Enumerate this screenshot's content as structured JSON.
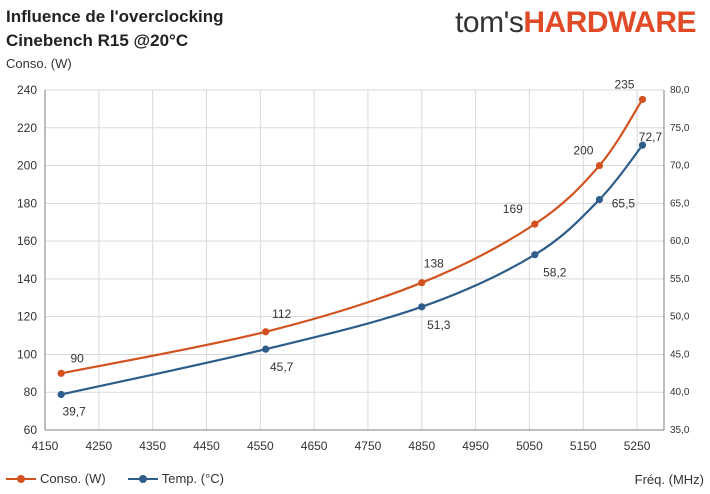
{
  "header": {
    "title_line1": "Influence  de l'overclocking",
    "title_line2": "Cinebench R15 @20°C",
    "logo_part1": "tom's",
    "logo_part2": "HARDWARE"
  },
  "chart_data": {
    "type": "line",
    "title": "Influence  de l'overclocking Cinebench R15 @20°C",
    "ylabel": "Conso. (W)",
    "xlabel": "Fréq. (MHz)",
    "xlim": [
      4150,
      5300
    ],
    "ylim": [
      60,
      240
    ],
    "y2lim": [
      35,
      80
    ],
    "xticks": [
      "4150",
      "4250",
      "4350",
      "4450",
      "4550",
      "4650",
      "4750",
      "4850",
      "4950",
      "5050",
      "5150",
      "5250"
    ],
    "yticks": [
      "60",
      "80",
      "100",
      "120",
      "140",
      "160",
      "180",
      "200",
      "220",
      "240"
    ],
    "y2ticks": [
      "35,0",
      "40,0",
      "45,0",
      "50,0",
      "55,0",
      "60,0",
      "65,0",
      "70,0",
      "75,0",
      "80,0"
    ],
    "x": [
      4180,
      4560,
      4850,
      5060,
      5180,
      5260
    ],
    "grid": true,
    "legend_position": "bottom-left",
    "series": [
      {
        "name": "Conso. (W)",
        "axis": "left",
        "color": "#d2521f",
        "values": [
          90,
          112,
          138,
          169,
          200,
          235
        ],
        "labels": [
          "90",
          "112",
          "138",
          "169",
          "200",
          "235"
        ]
      },
      {
        "name": "Temp. (°C)",
        "axis": "right",
        "color": "#2e5d8a",
        "values": [
          39.7,
          45.7,
          51.3,
          58.2,
          65.5,
          72.7
        ],
        "labels": [
          "39,7",
          "45,7",
          "51,3",
          "58,2",
          "65,5",
          "72,7"
        ]
      }
    ]
  }
}
